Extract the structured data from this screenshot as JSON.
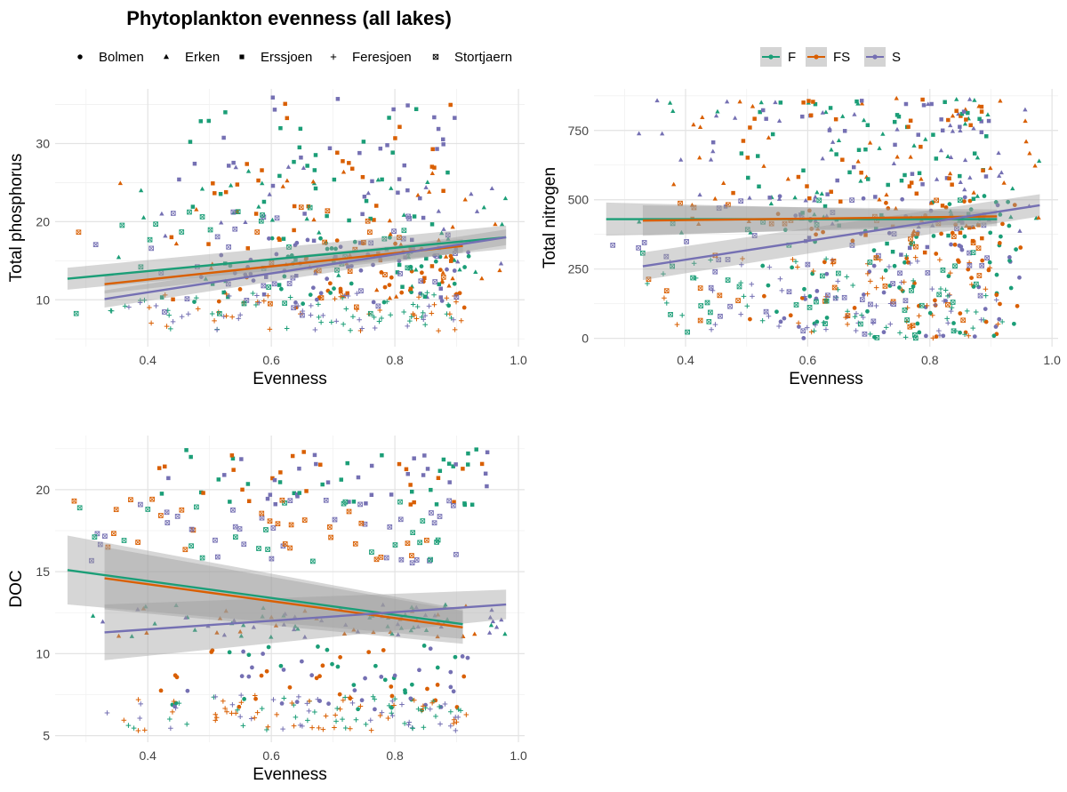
{
  "page": {
    "title": "Phytoplankton evenness (all lakes)"
  },
  "legend_shape": {
    "entries": [
      {
        "label": "Bolmen",
        "shape": "circle"
      },
      {
        "label": "Erken",
        "shape": "triangle"
      },
      {
        "label": "Erssjoen",
        "shape": "square"
      },
      {
        "label": "Feresjoen",
        "shape": "plus"
      },
      {
        "label": "Stortjaern",
        "shape": "boxx"
      }
    ]
  },
  "legend_color": {
    "entries": [
      {
        "label": "F",
        "color": "#1b9e77"
      },
      {
        "label": "FS",
        "color": "#d95f02"
      },
      {
        "label": "S",
        "color": "#7570b3"
      }
    ]
  },
  "colors": {
    "F": "#1b9e77",
    "FS": "#d95f02",
    "S": "#7570b3",
    "ribbon": "#9e9e9e"
  },
  "chart_data": [
    {
      "type": "scatter",
      "xlabel": "Evenness",
      "ylabel": "Total phosphorus",
      "xlim": [
        0.25,
        1.01
      ],
      "ylim": [
        4,
        37
      ],
      "xticks": [
        0.4,
        0.6,
        0.8,
        1.0
      ],
      "xtick_labels": [
        "0.4",
        "0.6",
        "0.8",
        "1.0"
      ],
      "yticks": [
        10,
        20,
        30
      ],
      "ytick_labels": [
        "10",
        "20",
        "30"
      ],
      "grid": true,
      "smooth": "linear fit with confidence band per group",
      "fits": [
        {
          "name": "F",
          "x": [
            0.27,
            0.98
          ],
          "y": [
            12.7,
            18.0
          ],
          "band_halfwidth": [
            1.4,
            1.5
          ]
        },
        {
          "name": "FS",
          "x": [
            0.33,
            0.91
          ],
          "y": [
            12.0,
            16.9
          ],
          "band_halfwidth": [
            1.2,
            0.9
          ]
        },
        {
          "name": "S",
          "x": [
            0.33,
            0.98
          ],
          "y": [
            10.1,
            18.0
          ],
          "band_halfwidth": [
            1.1,
            1.0
          ]
        }
      ],
      "point_clusters": [
        {
          "lake": "Bolmen",
          "x_range": [
            0.45,
            0.92
          ],
          "y_range": [
            9,
            18
          ],
          "n": 100
        },
        {
          "lake": "Erken",
          "x_range": [
            0.3,
            0.98
          ],
          "y_range": [
            10,
            27
          ],
          "n": 90
        },
        {
          "lake": "Erssjoen",
          "x_range": [
            0.42,
            0.9
          ],
          "y_range": [
            10,
            36
          ],
          "n": 130
        },
        {
          "lake": "Feresjoen",
          "x_range": [
            0.33,
            0.92
          ],
          "y_range": [
            6,
            11
          ],
          "n": 110
        },
        {
          "lake": "Stortjaern",
          "x_range": [
            0.27,
            0.9
          ],
          "y_range": [
            8,
            22
          ],
          "n": 80
        }
      ]
    },
    {
      "type": "scatter",
      "xlabel": "Evenness",
      "ylabel": "Total nitrogen",
      "xlim": [
        0.25,
        1.01
      ],
      "ylim": [
        -30,
        900
      ],
      "xticks": [
        0.4,
        0.6,
        0.8,
        1.0
      ],
      "xtick_labels": [
        "0.4",
        "0.6",
        "0.8",
        "1.0"
      ],
      "yticks": [
        0,
        250,
        500,
        750
      ],
      "ytick_labels": [
        "0",
        "250",
        "500",
        "750"
      ],
      "grid": true,
      "smooth": "linear fit with confidence band per group",
      "fits": [
        {
          "name": "F",
          "x": [
            0.27,
            0.91
          ],
          "y": [
            430,
            430
          ],
          "band_halfwidth": [
            60,
            25
          ]
        },
        {
          "name": "FS",
          "x": [
            0.33,
            0.91
          ],
          "y": [
            425,
            440
          ],
          "band_halfwidth": [
            55,
            25
          ]
        },
        {
          "name": "S",
          "x": [
            0.33,
            0.98
          ],
          "y": [
            260,
            480
          ],
          "band_halfwidth": [
            50,
            40
          ]
        }
      ],
      "point_clusters": [
        {
          "lake": "Bolmen",
          "x_range": [
            0.5,
            0.95
          ],
          "y_range": [
            0,
            520
          ],
          "n": 150
        },
        {
          "lake": "Erken",
          "x_range": [
            0.3,
            0.98
          ],
          "y_range": [
            380,
            870
          ],
          "n": 140
        },
        {
          "lake": "Erssjoen",
          "x_range": [
            0.4,
            0.9
          ],
          "y_range": [
            300,
            870
          ],
          "n": 130
        },
        {
          "lake": "Feresjoen",
          "x_range": [
            0.33,
            0.92
          ],
          "y_range": [
            0,
            300
          ],
          "n": 120
        },
        {
          "lake": "Stortjaern",
          "x_range": [
            0.27,
            0.9
          ],
          "y_range": [
            0,
            500
          ],
          "n": 120
        }
      ]
    },
    {
      "type": "scatter",
      "xlabel": "Evenness",
      "ylabel": "DOC",
      "xlim": [
        0.25,
        1.01
      ],
      "ylim": [
        4.6,
        23.3
      ],
      "xticks": [
        0.4,
        0.6,
        0.8,
        1.0
      ],
      "xtick_labels": [
        "0.4",
        "0.6",
        "0.8",
        "1.0"
      ],
      "yticks": [
        5,
        10,
        15,
        20
      ],
      "ytick_labels": [
        "5",
        "10",
        "15",
        "20"
      ],
      "grid": true,
      "smooth": "linear fit with confidence band per group",
      "fits": [
        {
          "name": "F",
          "x": [
            0.27,
            0.91
          ],
          "y": [
            15.1,
            11.8
          ],
          "band_halfwidth": [
            2.1,
            0.9
          ]
        },
        {
          "name": "FS",
          "x": [
            0.33,
            0.91
          ],
          "y": [
            14.6,
            11.6
          ],
          "band_halfwidth": [
            1.9,
            1.0
          ]
        },
        {
          "name": "S",
          "x": [
            0.33,
            0.98
          ],
          "y": [
            11.3,
            13.0
          ],
          "band_halfwidth": [
            1.7,
            0.9
          ]
        }
      ],
      "point_clusters": [
        {
          "lake": "Bolmen",
          "x_range": [
            0.38,
            0.92
          ],
          "y_range": [
            6.5,
            10.5
          ],
          "n": 80
        },
        {
          "lake": "Erken",
          "x_range": [
            0.3,
            0.98
          ],
          "y_range": [
            11,
            13
          ],
          "n": 90
        },
        {
          "lake": "Erssjoen",
          "x_range": [
            0.4,
            0.95
          ],
          "y_range": [
            19,
            22.5
          ],
          "n": 80
        },
        {
          "lake": "Feresjoen",
          "x_range": [
            0.33,
            0.92
          ],
          "y_range": [
            5.3,
            7.5
          ],
          "n": 120
        },
        {
          "lake": "Stortjaern",
          "x_range": [
            0.27,
            0.9
          ],
          "y_range": [
            15.5,
            19.5
          ],
          "n": 90
        }
      ]
    }
  ]
}
